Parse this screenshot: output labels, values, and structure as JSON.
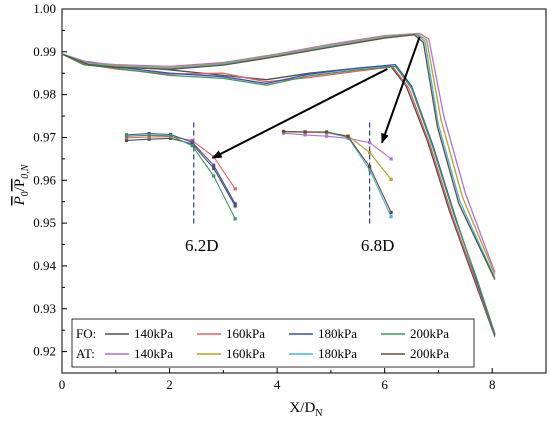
{
  "chart_data": {
    "type": "line",
    "xlabel": "X/D",
    "xlabel_sub": "N",
    "ylabel": "P",
    "ylabel_sub0": "0",
    "ylabel_sep": "/P",
    "ylabel_sub1": "0,N",
    "xlim": [
      0,
      9
    ],
    "ylim": [
      0.915,
      1.0
    ],
    "x_ticks": [
      0,
      2,
      4,
      6,
      8
    ],
    "y_ticks": [
      0.92,
      0.93,
      0.94,
      0.95,
      0.96,
      0.97,
      0.98,
      0.99,
      1.0
    ],
    "x_tick_labels": [
      "0",
      "2",
      "4",
      "6",
      "8"
    ],
    "y_tick_labels": [
      "0.92",
      "0.93",
      "0.94",
      "0.95",
      "0.96",
      "0.97",
      "0.98",
      "0.99",
      "1.00"
    ],
    "legend": {
      "placement": "bottom-left",
      "groups": [
        {
          "label": "FO:",
          "entries": [
            {
              "name": "140kPa",
              "color": "#505050"
            },
            {
              "name": "160kPa",
              "color": "#e06060"
            },
            {
              "name": "180kPa",
              "color": "#3a4fb0"
            },
            {
              "name": "200kPa",
              "color": "#3a9a5a"
            }
          ]
        },
        {
          "label": "AT:",
          "entries": [
            {
              "name": "140kPa",
              "color": "#b070d8"
            },
            {
              "name": "160kPa",
              "color": "#b8a020"
            },
            {
              "name": "180kPa",
              "color": "#40b8e0"
            },
            {
              "name": "200kPa",
              "color": "#6a4a3a"
            }
          ]
        }
      ]
    },
    "series": [
      {
        "name": "FO: 140kPa",
        "color": "#505050",
        "x": [
          0,
          0.4,
          1,
          2,
          3,
          3.8,
          4.6,
          5.5,
          6.1,
          6.4,
          6.8,
          7.2,
          7.6,
          8.05
        ],
        "y": [
          0.9895,
          0.9878,
          0.9868,
          0.9858,
          0.9845,
          0.9835,
          0.985,
          0.9862,
          0.9868,
          0.982,
          0.969,
          0.953,
          0.939,
          0.9235
        ]
      },
      {
        "name": "FO: 160kPa",
        "color": "#e06060",
        "x": [
          0,
          0.4,
          1,
          2,
          3,
          3.8,
          4.6,
          5.5,
          6.15,
          6.45,
          6.85,
          7.25,
          7.65,
          8.05
        ],
        "y": [
          0.9895,
          0.9872,
          0.986,
          0.9848,
          0.985,
          0.983,
          0.984,
          0.9855,
          0.9865,
          0.9815,
          0.968,
          0.952,
          0.938,
          0.9238
        ]
      },
      {
        "name": "FO: 180kPa",
        "color": "#3a4fb0",
        "x": [
          0,
          0.4,
          1,
          2,
          3,
          3.8,
          4.6,
          5.5,
          6.2,
          6.5,
          6.9,
          7.3,
          7.7,
          8.05
        ],
        "y": [
          0.9895,
          0.9875,
          0.9865,
          0.985,
          0.9842,
          0.9826,
          0.9848,
          0.9862,
          0.987,
          0.982,
          0.968,
          0.952,
          0.937,
          0.924
        ]
      },
      {
        "name": "FO: 200kPa",
        "color": "#3a9a5a",
        "x": [
          0,
          0.4,
          1,
          2,
          3,
          3.8,
          4.6,
          5.5,
          6.2,
          6.5,
          6.9,
          7.3,
          7.7,
          8.05
        ],
        "y": [
          0.9895,
          0.987,
          0.9862,
          0.9845,
          0.9838,
          0.9822,
          0.9844,
          0.9858,
          0.9866,
          0.9815,
          0.9675,
          0.9515,
          0.9375,
          0.9242
        ]
      },
      {
        "name": "AT: 140kPa",
        "color": "#b070d8",
        "x": [
          0,
          0.5,
          1,
          2,
          3,
          4,
          5,
          6,
          6.65,
          6.82,
          7.1,
          7.5,
          8.05
        ],
        "y": [
          0.9895,
          0.9875,
          0.987,
          0.9866,
          0.9875,
          0.9895,
          0.9918,
          0.9938,
          0.9943,
          0.993,
          0.975,
          0.957,
          0.9385
        ]
      },
      {
        "name": "AT: 160kPa",
        "color": "#b8a020",
        "x": [
          0,
          0.5,
          1,
          2,
          3,
          4,
          5,
          6,
          6.6,
          6.78,
          7.05,
          7.45,
          8.05
        ],
        "y": [
          0.9895,
          0.9873,
          0.9868,
          0.9863,
          0.9873,
          0.9893,
          0.9915,
          0.9936,
          0.9942,
          0.9928,
          0.974,
          0.956,
          0.938
        ]
      },
      {
        "name": "AT: 180kPa",
        "color": "#40b8e0",
        "x": [
          0,
          0.5,
          1,
          2,
          3,
          4,
          5,
          6,
          6.58,
          6.75,
          7.0,
          7.4,
          8.05
        ],
        "y": [
          0.9895,
          0.9872,
          0.9866,
          0.9861,
          0.9871,
          0.9891,
          0.9913,
          0.9934,
          0.9941,
          0.9925,
          0.973,
          0.955,
          0.9372
        ]
      },
      {
        "name": "AT: 200kPa",
        "color": "#6a4a3a",
        "x": [
          0,
          0.5,
          1,
          2,
          3,
          4,
          5,
          6,
          6.55,
          6.72,
          6.98,
          7.38,
          8.05
        ],
        "y": [
          0.9895,
          0.987,
          0.9864,
          0.9859,
          0.9869,
          0.9889,
          0.9911,
          0.9932,
          0.994,
          0.9922,
          0.9725,
          0.9545,
          0.9368
        ]
      }
    ],
    "insets": [
      {
        "label": "6.2D",
        "marker_x": 2.45,
        "marker_y_range": [
          0.9495,
          0.9735
        ],
        "x": [
          1.2,
          1.62,
          2.02,
          2.42,
          2.82,
          3.22
        ],
        "series": [
          {
            "color": "#505050",
            "y": [
              0.9693,
              0.9696,
              0.9698,
              0.9685,
              0.9628,
              0.954
            ]
          },
          {
            "color": "#e06060",
            "y": [
              0.9699,
              0.9701,
              0.9702,
              0.9693,
              0.9655,
              0.958
            ]
          },
          {
            "color": "#3a4fb0",
            "y": [
              0.9706,
              0.9709,
              0.9707,
              0.9689,
              0.9635,
              0.9545
            ]
          },
          {
            "color": "#3a9a5a",
            "y": [
              0.9703,
              0.9705,
              0.9704,
              0.9681,
              0.961,
              0.951
            ]
          }
        ]
      },
      {
        "label": "6.8D",
        "marker_x": 5.72,
        "marker_y_range": [
          0.9495,
          0.9735
        ],
        "x": [
          4.12,
          4.52,
          4.92,
          5.32,
          5.72,
          6.12
        ],
        "series": [
          {
            "color": "#b070d8",
            "y": [
              0.971,
              0.9706,
              0.9703,
              0.9698,
              0.9688,
              0.965
            ]
          },
          {
            "color": "#b8a020",
            "y": [
              0.9713,
              0.9712,
              0.9711,
              0.9704,
              0.9665,
              0.9602
            ]
          },
          {
            "color": "#40b8e0",
            "y": [
              0.9714,
              0.9713,
              0.9712,
              0.97,
              0.9625,
              0.9515
            ]
          },
          {
            "color": "#6a4a3a",
            "y": [
              0.9714,
              0.9713,
              0.9713,
              0.9702,
              0.9632,
              0.9525
            ]
          }
        ]
      }
    ],
    "annotations": [
      {
        "type": "arrow",
        "from": [
          6.05,
          0.986
        ],
        "to": [
          2.8,
          0.9652
        ]
      },
      {
        "type": "arrow",
        "from": [
          6.65,
          0.9935
        ],
        "to": [
          5.95,
          0.9688
        ]
      }
    ]
  }
}
